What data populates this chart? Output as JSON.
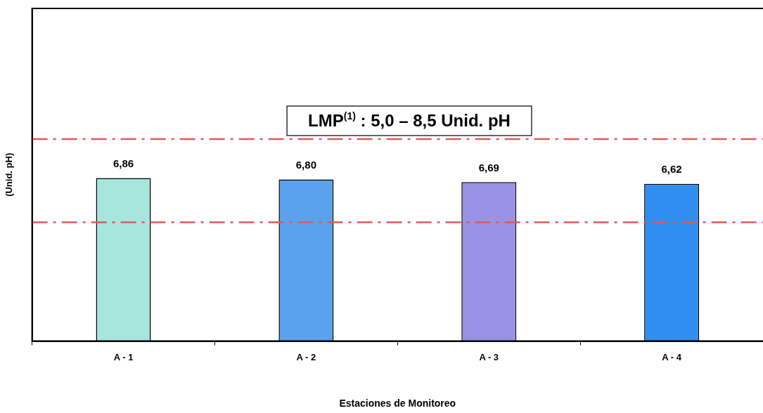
{
  "chart_data": {
    "type": "bar",
    "xlabel": "Estaciones de Monitoreo",
    "ylabel": "(Unid. pH)",
    "categories": [
      "A - 1",
      "A - 2",
      "A - 3",
      "A - 4"
    ],
    "values": [
      6.86,
      6.8,
      6.69,
      6.62
    ],
    "value_labels": [
      "6,86",
      "6,80",
      "6,69",
      "6,62"
    ],
    "colors": [
      "#a6e6dc",
      "#5aa3ec",
      "#9a92e4",
      "#2f8ef2"
    ],
    "ylim": [
      0,
      14
    ],
    "tick_labels": "x",
    "grid": false,
    "legend": false,
    "ref_lines": [
      {
        "axis": "y",
        "value": 8.5,
        "label": null,
        "color": "#e05a5a",
        "line_style": "dashed"
      },
      {
        "axis": "y",
        "value": 5.0,
        "label": null,
        "color": "#e05a5a",
        "line_style": "dashed"
      }
    ],
    "annotations": [
      "LMP$^{(1)}$ : 5,0 – 8,5 Unid. pH"
    ]
  }
}
